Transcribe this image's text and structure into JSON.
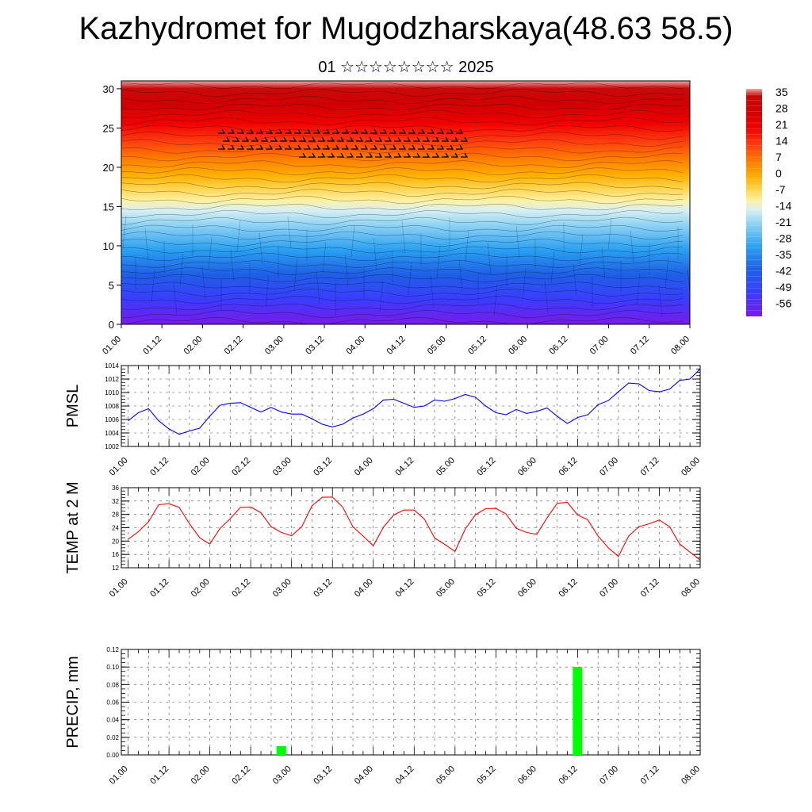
{
  "header": {
    "title": "Kazhydromet for Mugodzharskaya(48.63 58.5)",
    "subtitle": "01 ☆☆☆☆☆☆☆☆ 2025"
  },
  "time_ticks": [
    "01.00",
    "01.12",
    "02.00",
    "02.12",
    "03.00",
    "03.12",
    "04.00",
    "04.12",
    "05.00",
    "05.12",
    "06.00",
    "06.12",
    "07.00",
    "07.12",
    "08.00"
  ],
  "chart_data": [
    {
      "type": "heatmap",
      "panel": "cross-section",
      "x_ticks": [
        "01.00",
        "01.12",
        "02.00",
        "02.12",
        "03.00",
        "03.12",
        "04.00",
        "04.12",
        "05.00",
        "05.12",
        "06.00",
        "06.12",
        "07.00",
        "07.12",
        "08.00"
      ],
      "y_ticks": [
        "0",
        "5",
        "10",
        "15",
        "20",
        "25",
        "30"
      ],
      "ylim": [
        0,
        31
      ],
      "xlim": [
        0,
        168
      ],
      "colorbar_labels": [
        "35",
        "28",
        "21",
        "14",
        "7",
        "0",
        "-7",
        "-14",
        "-21",
        "-28",
        "-35",
        "-42",
        "-49",
        "-56"
      ],
      "color_scale": {
        "min": -60,
        "max": 38
      }
    },
    {
      "type": "line",
      "panel": "pmsl",
      "ylabel": "PMSL",
      "ylim": [
        1002,
        1014
      ],
      "y_ticks": [
        "1014",
        "1012",
        "1010",
        "1008",
        "1006",
        "1004",
        "1002"
      ],
      "x_ticks": [
        "01.00",
        "01.12",
        "02.00",
        "02.12",
        "03.00",
        "03.12",
        "04.00",
        "04.12",
        "05.00",
        "05.12",
        "06.00",
        "06.12",
        "07.00",
        "07.12",
        "08.00"
      ],
      "xlim": [
        -2,
        168
      ],
      "line_color": "#0000ff",
      "x_hours": [
        0,
        3,
        6,
        9,
        12,
        15,
        18,
        21,
        24,
        27,
        30,
        33,
        36,
        39,
        42,
        45,
        48,
        51,
        54,
        57,
        60,
        63,
        66,
        69,
        72,
        75,
        78,
        81,
        84,
        87,
        90,
        93,
        96,
        99,
        102,
        105,
        108,
        111,
        114,
        117,
        120,
        123,
        126,
        129,
        132,
        135,
        138,
        141,
        144,
        147,
        150,
        153,
        156,
        159,
        162,
        165,
        168
      ],
      "values": [
        1005.8,
        1007.0,
        1007.6,
        1005.8,
        1004.6,
        1003.8,
        1004.3,
        1004.7,
        1006.5,
        1008.1,
        1008.4,
        1008.5,
        1007.8,
        1007.1,
        1007.8,
        1007.1,
        1006.8,
        1006.8,
        1006.1,
        1005.3,
        1004.9,
        1005.3,
        1006.2,
        1006.8,
        1007.6,
        1008.9,
        1009.0,
        1008.4,
        1007.8,
        1008.0,
        1008.9,
        1008.7,
        1009.1,
        1009.7,
        1009.3,
        1008.0,
        1007.0,
        1006.7,
        1007.5,
        1006.9,
        1007.2,
        1007.7,
        1006.5,
        1005.4,
        1006.3,
        1006.7,
        1008.2,
        1008.8,
        1010.1,
        1011.4,
        1011.3,
        1010.3,
        1010.1,
        1010.5,
        1011.8,
        1012.0,
        1013.5
      ]
    },
    {
      "type": "line",
      "panel": "temp2m",
      "ylabel": "TEMP at 2 M",
      "ylim": [
        12,
        36
      ],
      "y_ticks": [
        "36",
        "32",
        "28",
        "24",
        "20",
        "16",
        "12"
      ],
      "x_ticks": [
        "01.00",
        "01.12",
        "02.00",
        "02.12",
        "03.00",
        "03.12",
        "04.00",
        "04.12",
        "05.00",
        "05.12",
        "06.00",
        "06.12",
        "07.00",
        "07.12",
        "08.00"
      ],
      "xlim": [
        -2,
        168
      ],
      "line_color": "#ff0000",
      "x_hours": [
        0,
        3,
        6,
        9,
        12,
        15,
        18,
        21,
        24,
        27,
        30,
        33,
        36,
        39,
        42,
        45,
        48,
        51,
        54,
        57,
        60,
        63,
        66,
        69,
        72,
        75,
        78,
        81,
        84,
        87,
        90,
        93,
        96,
        99,
        102,
        105,
        108,
        111,
        114,
        117,
        120,
        123,
        126,
        129,
        132,
        135,
        138,
        141,
        144,
        147,
        150,
        153,
        156,
        159,
        162,
        165,
        168
      ],
      "values": [
        20.5,
        22.8,
        25.8,
        30.9,
        31.2,
        30.1,
        25.2,
        21.0,
        19.1,
        23.8,
        26.7,
        30.1,
        30.2,
        28.5,
        24.3,
        22.6,
        21.6,
        24.3,
        30.6,
        33.1,
        33.2,
        30.2,
        24.3,
        21.5,
        18.6,
        24.2,
        27.8,
        29.3,
        29.3,
        26.6,
        20.9,
        19.0,
        16.9,
        23.6,
        27.9,
        29.7,
        29.8,
        28.1,
        23.8,
        22.6,
        22.0,
        26.9,
        31.3,
        31.6,
        27.8,
        26.4,
        21.5,
        18.0,
        15.4,
        21.5,
        24.3,
        25.2,
        26.3,
        24.3,
        19.1,
        16.7,
        14.3
      ]
    },
    {
      "type": "bar",
      "panel": "precip",
      "ylabel": "PRECIP, mm",
      "ylim": [
        0,
        0.12
      ],
      "y_ticks": [
        "0.12",
        "0.10",
        "0.08",
        "0.06",
        "0.04",
        "0.02",
        "0.00"
      ],
      "x_ticks": [
        "01.00",
        "01.12",
        "02.00",
        "02.12",
        "03.00",
        "03.12",
        "04.00",
        "04.12",
        "05.00",
        "05.12",
        "06.00",
        "06.12",
        "07.00",
        "07.12",
        "08.00"
      ],
      "xlim": [
        -2,
        168
      ],
      "bar_color": "#00ff00",
      "bars": [
        {
          "x_hour": 45,
          "value": 0.01
        },
        {
          "x_hour": 132,
          "value": 0.1
        }
      ]
    }
  ]
}
